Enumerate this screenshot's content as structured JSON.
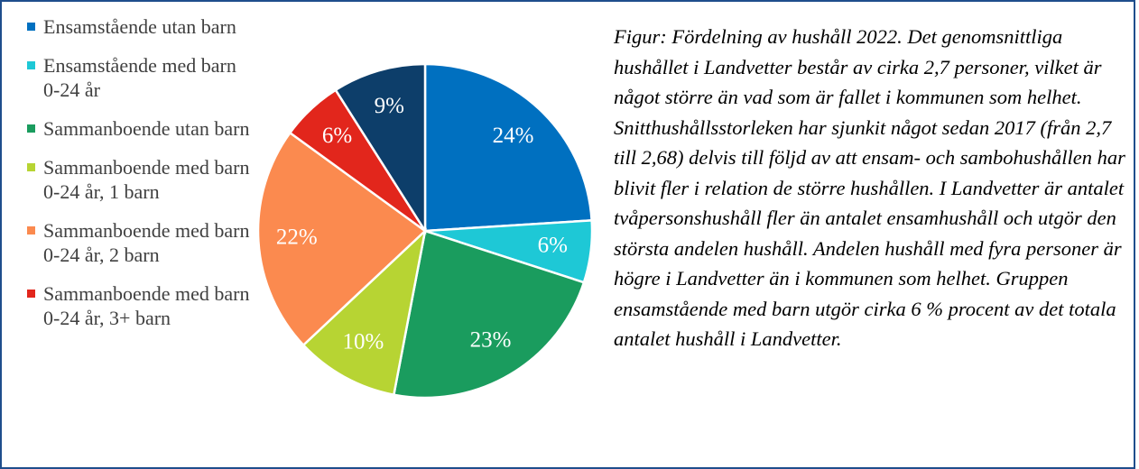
{
  "chart_data": {
    "type": "pie",
    "categories": [
      "Ensamstående utan barn",
      "Ensamstående med barn 0-24 år",
      "Sammanboende utan barn",
      "Sammanboende med barn 0-24 år, 1 barn",
      "Sammanboende med barn 0-24 år, 2 barn",
      "Sammanboende med barn 0-24 år, 3+ barn",
      null
    ],
    "values": [
      24,
      6,
      23,
      10,
      22,
      6,
      9
    ],
    "value_labels": [
      "24%",
      "6%",
      "23%",
      "10%",
      "22%",
      "6%",
      "9%"
    ],
    "colors": [
      "#0070c0",
      "#1ec8d6",
      "#1a9c5e",
      "#b7d433",
      "#fb8a4f",
      "#e2261c",
      "#0d3e6a"
    ],
    "caption": "Figur: Fördelning av hushåll 2022. Det genomsnittliga hushållet i Landvetter består av cirka 2,7 personer, vilket är något större än vad som är fallet i kommunen som helhet. Snitthushållsstorleken har sjunkit något sedan 2017 (från 2,7 till 2,68) delvis till följd av att ensam- och sambohushållen har blivit fler i relation de större hushållen. I Landvetter är antalet tvåpersonshushåll fler än antalet ensamhushåll och utgör den största andelen hushåll. Andelen hushåll med fyra personer är högre i Landvetter än i kommunen som helhet. Gruppen ensamstående med barn utgör cirka 6 % procent av det totala antalet hushåll i Landvetter."
  }
}
